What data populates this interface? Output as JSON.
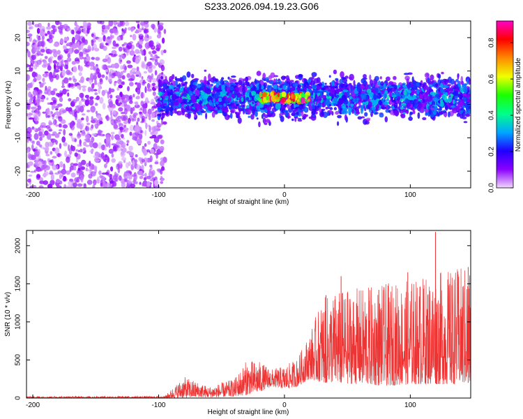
{
  "title": "S233.2026.094.19.23.G06",
  "chart_data": [
    {
      "type": "heatmap",
      "xlabel": "Height of straight line (km)",
      "ylabel": "Frequency (Hz)",
      "xlim": [
        -205,
        148
      ],
      "ylim": [
        -25,
        25
      ],
      "xticks": [
        -200,
        -100,
        0,
        100
      ],
      "xtick_labels": [
        "-200",
        "-100",
        "0",
        "100"
      ],
      "yticks": [
        -20,
        -10,
        0,
        10,
        20
      ],
      "ytick_labels": [
        "-20",
        "-10",
        "0",
        "10",
        "20"
      ],
      "colorbar": {
        "label": "Normalized spectral amplitude",
        "range": [
          0,
          0.92
        ],
        "ticks": [
          0,
          0.2,
          0.4,
          0.6,
          0.8
        ],
        "tick_labels": [
          "0.0",
          "0.2",
          "0.4",
          "0.6",
          "0.8"
        ],
        "colormap": [
          "#f2d9ff",
          "#8a00ff",
          "#1f00ff",
          "#00a8ff",
          "#00ff88",
          "#1bff00",
          "#f0ff00",
          "#ff8a00",
          "#ff0000",
          "#ff00c8"
        ]
      },
      "regions": [
        {
          "name": "broadband noise",
          "x": [
            -205,
            -95
          ],
          "freq_band": [
            -25,
            25
          ],
          "amplitude": 0.05
        },
        {
          "name": "signal band",
          "x": [
            -100,
            148
          ],
          "freq_center": 2,
          "freq_halfwidth": 6,
          "amplitude": 0.2
        },
        {
          "name": "strong tone",
          "x": [
            -20,
            20
          ],
          "freq_center": 2,
          "amplitude": 0.85
        }
      ]
    },
    {
      "type": "line",
      "xlabel": "Height of straight line (km)",
      "ylabel": "SNR (10 * v/v)",
      "xlim": [
        -205,
        148
      ],
      "ylim": [
        0,
        2200
      ],
      "xticks": [
        -200,
        -100,
        0,
        100
      ],
      "xtick_labels": [
        "-200",
        "-100",
        "0",
        "100"
      ],
      "yticks": [
        0,
        500,
        1000,
        1500,
        2000
      ],
      "ytick_labels": [
        "0",
        "500",
        "1000",
        "1500",
        "2000"
      ],
      "color": "#ee3333",
      "envelope": {
        "x": [
          -205,
          -100,
          -95,
          -80,
          -70,
          -60,
          -50,
          -40,
          -30,
          -20,
          -10,
          0,
          10,
          20,
          30,
          40,
          60,
          80,
          100,
          120,
          148
        ],
        "baseline": [
          0,
          0,
          0,
          5,
          10,
          10,
          15,
          20,
          40,
          80,
          150,
          120,
          150,
          250,
          200,
          200,
          180,
          160,
          180,
          180,
          180
        ],
        "peak": [
          25,
          25,
          30,
          280,
          220,
          150,
          200,
          250,
          500,
          480,
          380,
          420,
          520,
          850,
          1300,
          1400,
          1450,
          1500,
          1550,
          1650,
          1750
        ]
      },
      "spikes": [
        {
          "x": 33,
          "y": 1350
        },
        {
          "x": 45,
          "y": 1600
        },
        {
          "x": 75,
          "y": 1420
        },
        {
          "x": 98,
          "y": 1650
        },
        {
          "x": 120,
          "y": 2180
        },
        {
          "x": 133,
          "y": 1480
        },
        {
          "x": 146,
          "y": 1720
        }
      ]
    }
  ]
}
